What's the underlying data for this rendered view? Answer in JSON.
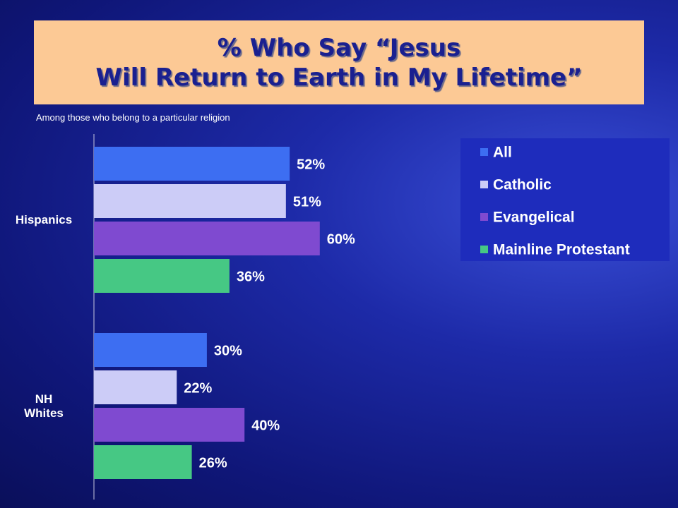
{
  "chart_data": {
    "type": "bar",
    "orientation": "horizontal",
    "title": "% Who Say “Jesus\nWill Return to Earth in My Lifetime”",
    "subtitle": "Among those who belong to a particular religion",
    "categories": [
      "Hispanics",
      "NH\nWhites"
    ],
    "xlim": [
      0,
      100
    ],
    "legend": "top-right",
    "series": [
      {
        "name": "All",
        "color": "#3d6ef2",
        "values": [
          52,
          30
        ],
        "value_labels": [
          "52%",
          "30%"
        ]
      },
      {
        "name": "Catholic",
        "color": "#ccccf7",
        "values": [
          51,
          22
        ],
        "value_labels": [
          "51%",
          "22%"
        ]
      },
      {
        "name": "Evangelical",
        "color": "#7f4ad0",
        "values": [
          60,
          40
        ],
        "value_labels": [
          "60%",
          "40%"
        ]
      },
      {
        "name": "Mainline Protestant",
        "color": "#46c884",
        "values": [
          36,
          26
        ],
        "value_labels": [
          "36%",
          "26%"
        ]
      }
    ]
  }
}
